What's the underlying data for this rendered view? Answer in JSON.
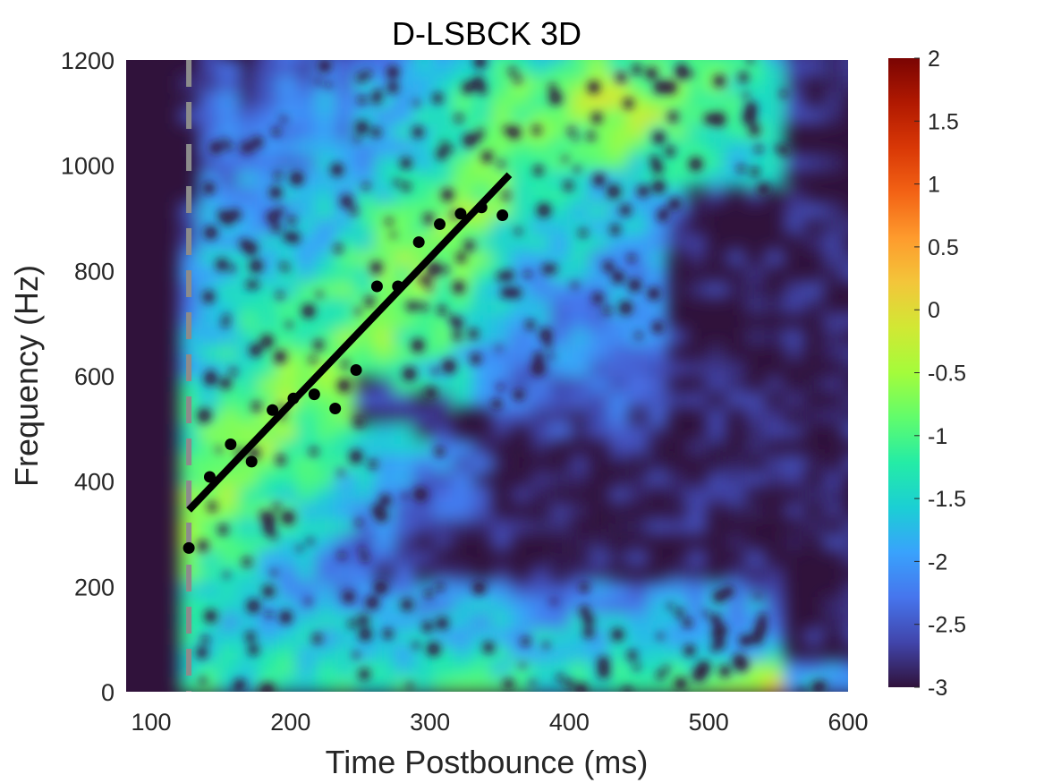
{
  "chart_data": {
    "type": "heatmap",
    "title": "D-LSBCK 3D",
    "xlabel": "Time Postbounce (ms)",
    "ylabel": "Frequency (Hz)",
    "xlim": [
      82,
      600
    ],
    "ylim": [
      0,
      1200
    ],
    "xticks": [
      100,
      200,
      300,
      400,
      500,
      600
    ],
    "yticks": [
      0,
      200,
      400,
      600,
      800,
      1000,
      1200
    ],
    "colorbar": {
      "colormap": "turbo",
      "range": [
        -3,
        2
      ],
      "ticks": [
        "2",
        "1.5",
        "1",
        "0.5",
        "0",
        "-0.5",
        "-1",
        "-1.5",
        "-2",
        "-2.5",
        "-3"
      ],
      "stops": [
        "#30123b",
        "#4145ab",
        "#4675ed",
        "#39a2fc",
        "#1bcfd4",
        "#24eca6",
        "#61fc6c",
        "#a4fc3b",
        "#d1e834",
        "#f3c63a",
        "#fe9b2d",
        "#f36315",
        "#d93806",
        "#b11901",
        "#7a0403"
      ]
    },
    "onset_line": {
      "x": 127,
      "style": "dashed",
      "color": "#8c8c8c"
    },
    "peak_points": {
      "x": [
        127,
        142,
        157,
        172,
        187,
        202,
        217,
        232,
        247,
        262,
        277,
        292,
        307,
        322,
        337,
        352
      ],
      "y": [
        273,
        408,
        470,
        437,
        535,
        557,
        565,
        538,
        611,
        770,
        770,
        854,
        888,
        908,
        920,
        905
      ]
    },
    "fit_line": {
      "x": [
        127,
        357
      ],
      "y": [
        345,
        982
      ],
      "color": "#000000"
    }
  }
}
